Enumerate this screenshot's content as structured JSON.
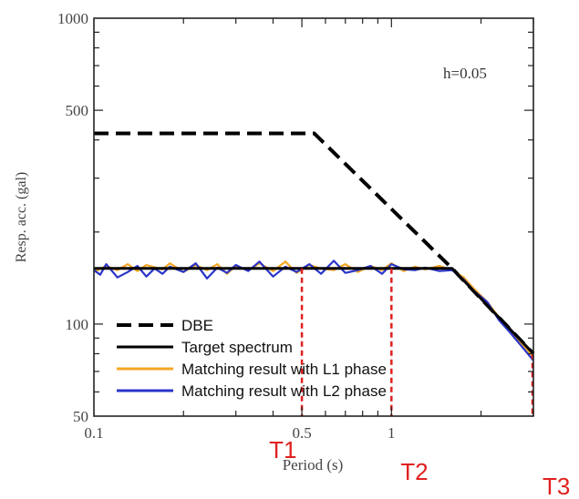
{
  "chart_data": {
    "type": "line",
    "xlabel": "Period (s)",
    "ylabel": "Resp. acc. (gal)",
    "xscale": "log",
    "yscale": "log",
    "xlim": [
      0.1,
      3
    ],
    "ylim": [
      50,
      1000
    ],
    "x_ticks": [
      {
        "value": 0.1,
        "label": "0.1"
      },
      {
        "value": 0.5,
        "label": "0.5"
      },
      {
        "value": 1,
        "label": "1"
      }
    ],
    "y_ticks": [
      {
        "value": 50,
        "label": "50"
      },
      {
        "value": 100,
        "label": "100"
      },
      {
        "value": 500,
        "label": "500"
      },
      {
        "value": 1000,
        "label": "1000"
      }
    ],
    "annotation": "h=0.05",
    "legend_position": "bottom-left",
    "series": [
      {
        "name": "DBE",
        "color": "#000000",
        "style": "dashed",
        "x": [
          0.1,
          0.55,
          1.6,
          3.0
        ],
        "y": [
          420,
          420,
          152,
          80
        ]
      },
      {
        "name": "Target spectrum",
        "color": "#000000",
        "style": "solid",
        "x": [
          0.1,
          1.6,
          3.0
        ],
        "y": [
          152,
          152,
          80
        ]
      },
      {
        "name": "Matching result with L1 phase",
        "color": "#f5a623",
        "style": "solid",
        "x": [
          0.1,
          0.11,
          0.12,
          0.13,
          0.14,
          0.15,
          0.17,
          0.18,
          0.2,
          0.22,
          0.24,
          0.26,
          0.28,
          0.3,
          0.33,
          0.36,
          0.4,
          0.44,
          0.48,
          0.53,
          0.58,
          0.64,
          0.7,
          0.77,
          0.85,
          0.93,
          1.0,
          1.1,
          1.2,
          1.3,
          1.45,
          1.6,
          1.75,
          1.9,
          2.1,
          2.3,
          2.5,
          2.7,
          3.0
        ],
        "y": [
          148,
          155,
          150,
          157,
          149,
          156,
          151,
          158,
          148,
          156,
          150,
          157,
          146,
          155,
          150,
          158,
          149,
          160,
          147,
          156,
          152,
          150,
          157,
          148,
          155,
          150,
          158,
          149,
          154,
          151,
          155,
          150,
          142,
          130,
          118,
          105,
          96,
          88,
          78
        ]
      },
      {
        "name": "Matching result with L2 phase",
        "color": "#2a35c8",
        "style": "solid",
        "x": [
          0.1,
          0.105,
          0.11,
          0.12,
          0.13,
          0.14,
          0.15,
          0.16,
          0.17,
          0.18,
          0.2,
          0.22,
          0.24,
          0.26,
          0.28,
          0.3,
          0.33,
          0.36,
          0.4,
          0.44,
          0.48,
          0.53,
          0.58,
          0.64,
          0.7,
          0.77,
          0.85,
          0.93,
          1.0,
          1.1,
          1.2,
          1.3,
          1.45,
          1.6,
          1.75,
          1.9,
          2.1,
          2.3,
          2.5,
          2.7,
          3.0
        ],
        "y": [
          150,
          145,
          157,
          142,
          148,
          155,
          143,
          152,
          146,
          154,
          148,
          158,
          141,
          153,
          147,
          156,
          149,
          160,
          143,
          154,
          148,
          157,
          146,
          161,
          147,
          150,
          155,
          146,
          157,
          151,
          150,
          153,
          149,
          150,
          140,
          128,
          118,
          103,
          94,
          86,
          76
        ]
      }
    ],
    "markers": [
      {
        "label": "T1",
        "x": 0.5
      },
      {
        "label": "T2",
        "x": 1.0
      },
      {
        "label": "T3",
        "x": 3.0
      }
    ],
    "marker_color": "#e02020"
  }
}
